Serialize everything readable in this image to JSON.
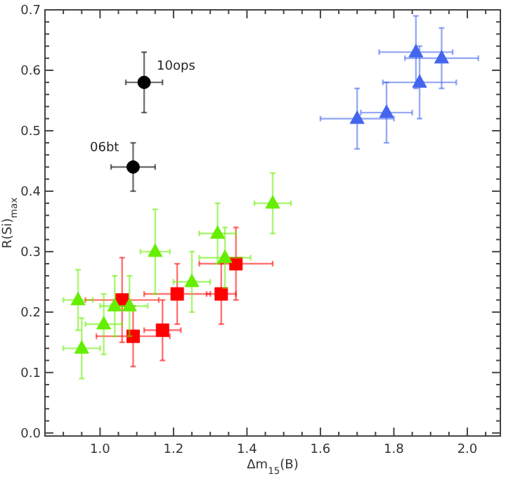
{
  "chart_data": {
    "type": "scatter",
    "xlabel": "Δm$_{15}$(B)",
    "ylabel": "R(Si)$_{max}$",
    "xlim": [
      0.85,
      2.09
    ],
    "ylim": [
      -0.005,
      0.7
    ],
    "xticks": [
      {
        "value": 0.9,
        "label": null
      },
      {
        "value": 0.95,
        "label": null
      },
      {
        "value": 1.0,
        "label": "1.0"
      },
      {
        "value": 1.05,
        "label": null
      },
      {
        "value": 1.1,
        "label": null
      },
      {
        "value": 1.15,
        "label": null
      },
      {
        "value": 1.2,
        "label": "1.2"
      },
      {
        "value": 1.25,
        "label": null
      },
      {
        "value": 1.3,
        "label": null
      },
      {
        "value": 1.35,
        "label": null
      },
      {
        "value": 1.4,
        "label": "1.4"
      },
      {
        "value": 1.45,
        "label": null
      },
      {
        "value": 1.5,
        "label": null
      },
      {
        "value": 1.55,
        "label": null
      },
      {
        "value": 1.6,
        "label": "1.6"
      },
      {
        "value": 1.65,
        "label": null
      },
      {
        "value": 1.7,
        "label": null
      },
      {
        "value": 1.75,
        "label": null
      },
      {
        "value": 1.8,
        "label": "1.8"
      },
      {
        "value": 1.85,
        "label": null
      },
      {
        "value": 1.9,
        "label": null
      },
      {
        "value": 1.95,
        "label": null
      },
      {
        "value": 2.0,
        "label": "2.0"
      },
      {
        "value": 2.05,
        "label": null
      }
    ],
    "yticks": [
      {
        "value": 0,
        "label": "0.0"
      },
      {
        "value": 0.02,
        "label": null
      },
      {
        "value": 0.04,
        "label": null
      },
      {
        "value": 0.06,
        "label": null
      },
      {
        "value": 0.08,
        "label": null
      },
      {
        "value": 0.1,
        "label": "0.1"
      },
      {
        "value": 0.12,
        "label": null
      },
      {
        "value": 0.14,
        "label": null
      },
      {
        "value": 0.16,
        "label": null
      },
      {
        "value": 0.18,
        "label": null
      },
      {
        "value": 0.2,
        "label": "0.2"
      },
      {
        "value": 0.22,
        "label": null
      },
      {
        "value": 0.24,
        "label": null
      },
      {
        "value": 0.26,
        "label": null
      },
      {
        "value": 0.28,
        "label": null
      },
      {
        "value": 0.3,
        "label": "0.3"
      },
      {
        "value": 0.32,
        "label": null
      },
      {
        "value": 0.34,
        "label": null
      },
      {
        "value": 0.36,
        "label": null
      },
      {
        "value": 0.38,
        "label": null
      },
      {
        "value": 0.4,
        "label": "0.4"
      },
      {
        "value": 0.42,
        "label": null
      },
      {
        "value": 0.44,
        "label": null
      },
      {
        "value": 0.46,
        "label": null
      },
      {
        "value": 0.48,
        "label": null
      },
      {
        "value": 0.5,
        "label": "0.5"
      },
      {
        "value": 0.52,
        "label": null
      },
      {
        "value": 0.54,
        "label": null
      },
      {
        "value": 0.56,
        "label": null
      },
      {
        "value": 0.58,
        "label": null
      },
      {
        "value": 0.6,
        "label": "0.6"
      },
      {
        "value": 0.62,
        "label": null
      },
      {
        "value": 0.64,
        "label": null
      },
      {
        "value": 0.66,
        "label": null
      },
      {
        "value": 0.68,
        "label": null
      },
      {
        "value": 0.7,
        "label": "0.7"
      }
    ],
    "grid": false,
    "series": [
      {
        "color": "#ff0000",
        "marker": "square",
        "x": [
          1.06,
          1.09,
          1.17,
          1.21,
          1.33,
          1.37
        ],
        "values": [
          0.22,
          0.16,
          0.17,
          0.23,
          0.23,
          0.28
        ],
        "errors": [
          0.07,
          0.05,
          0.05,
          0.05,
          0.05,
          0.06
        ],
        "xerrors": [
          0.1,
          0.1,
          0.05,
          0.09,
          0.04,
          0.1
        ]
      },
      {
        "color": "#66ee00",
        "marker": "triangle",
        "x": [
          0.94,
          0.95,
          1.01,
          1.04,
          1.08,
          1.15,
          1.25,
          1.32,
          1.34,
          1.47
        ],
        "values": [
          0.22,
          0.14,
          0.18,
          0.21,
          0.21,
          0.3,
          0.25,
          0.33,
          0.29,
          0.38
        ],
        "errors": [
          0.05,
          0.05,
          0.05,
          0.05,
          0.05,
          0.07,
          0.05,
          0.05,
          0.05,
          0.05
        ],
        "xerrors": [
          0.04,
          0.05,
          0.05,
          0.04,
          0.05,
          0.04,
          0.05,
          0.05,
          0.07,
          0.05
        ]
      },
      {
        "color": "#4466ee",
        "marker": "triangle",
        "x": [
          1.7,
          1.78,
          1.86,
          1.87,
          1.93
        ],
        "values": [
          0.52,
          0.53,
          0.63,
          0.58,
          0.62
        ],
        "errors": [
          0.05,
          0.05,
          0.06,
          0.06,
          0.05
        ],
        "xerrors": [
          0.1,
          0.07,
          0.1,
          0.1,
          0.1
        ]
      },
      {
        "color": "#000000",
        "marker": "circle",
        "x": [
          1.12
        ],
        "values": [
          0.58
        ],
        "errors": [
          0.05
        ],
        "xerrors": [
          0.05
        ]
      },
      {
        "color": "#000000",
        "marker": "circle",
        "x": [
          1.09
        ],
        "values": [
          0.44
        ],
        "errors": [
          0.04
        ],
        "xerrors": [
          0.06
        ]
      }
    ],
    "annotations": [
      {
        "text": "10ops",
        "x": 1.12,
        "y": 0.58
      },
      {
        "text": "06bt",
        "x": 1.09,
        "y": 0.44
      }
    ]
  }
}
